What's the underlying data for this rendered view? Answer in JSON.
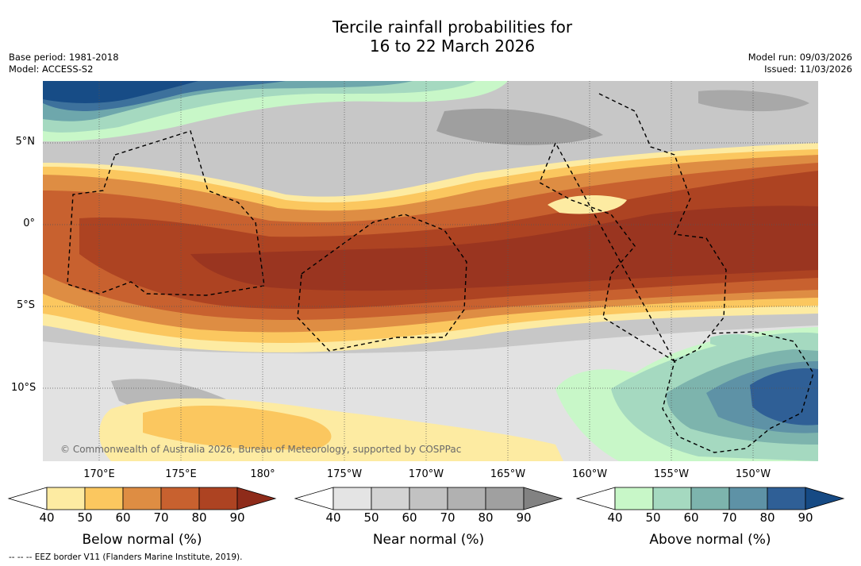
{
  "title": {
    "line1": "Tercile rainfall probabilities for",
    "line2": "16 to 22 March 2026"
  },
  "meta": {
    "base_period": "Base period: 1981-2018",
    "model": "Model: ACCESS-S2",
    "model_run": "Model run: 09/03/2026",
    "issued": "Issued: 11/03/2026"
  },
  "map": {
    "lat_labels": [
      "5°N",
      "0°",
      "5°S",
      "10°S"
    ],
    "lon_labels": [
      "170°E",
      "175°E",
      "180°",
      "175°W",
      "170°W",
      "165°W",
      "160°W",
      "155°W",
      "150°W"
    ],
    "copyright": "© Commonwealth of Australia 2026, Bureau of Meteorology, supported by COSPPac"
  },
  "colorbars": [
    {
      "label": "Below normal (%)",
      "colors": [
        "#ffffff",
        "#fdeba2",
        "#fbc75f",
        "#de8d43",
        "#c8612f",
        "#ad4322",
        "#8e2b1a"
      ]
    },
    {
      "label": "Near normal (%)",
      "colors": [
        "#ffffff",
        "#e4e4e4",
        "#d3d3d3",
        "#c2c2c2",
        "#b1b1b1",
        "#a0a0a0",
        "#828282"
      ]
    },
    {
      "label": "Above normal (%)",
      "colors": [
        "#ffffff",
        "#c8f7c8",
        "#a5d9c0",
        "#7db4ad",
        "#5e92a6",
        "#2f5f96",
        "#164a84"
      ]
    }
  ],
  "colorbar_ticks": [
    "40",
    "50",
    "60",
    "70",
    "80",
    "90"
  ],
  "footnote": "--  --  -- EEZ border V11 (Flanders Marine Institute, 2019)."
}
